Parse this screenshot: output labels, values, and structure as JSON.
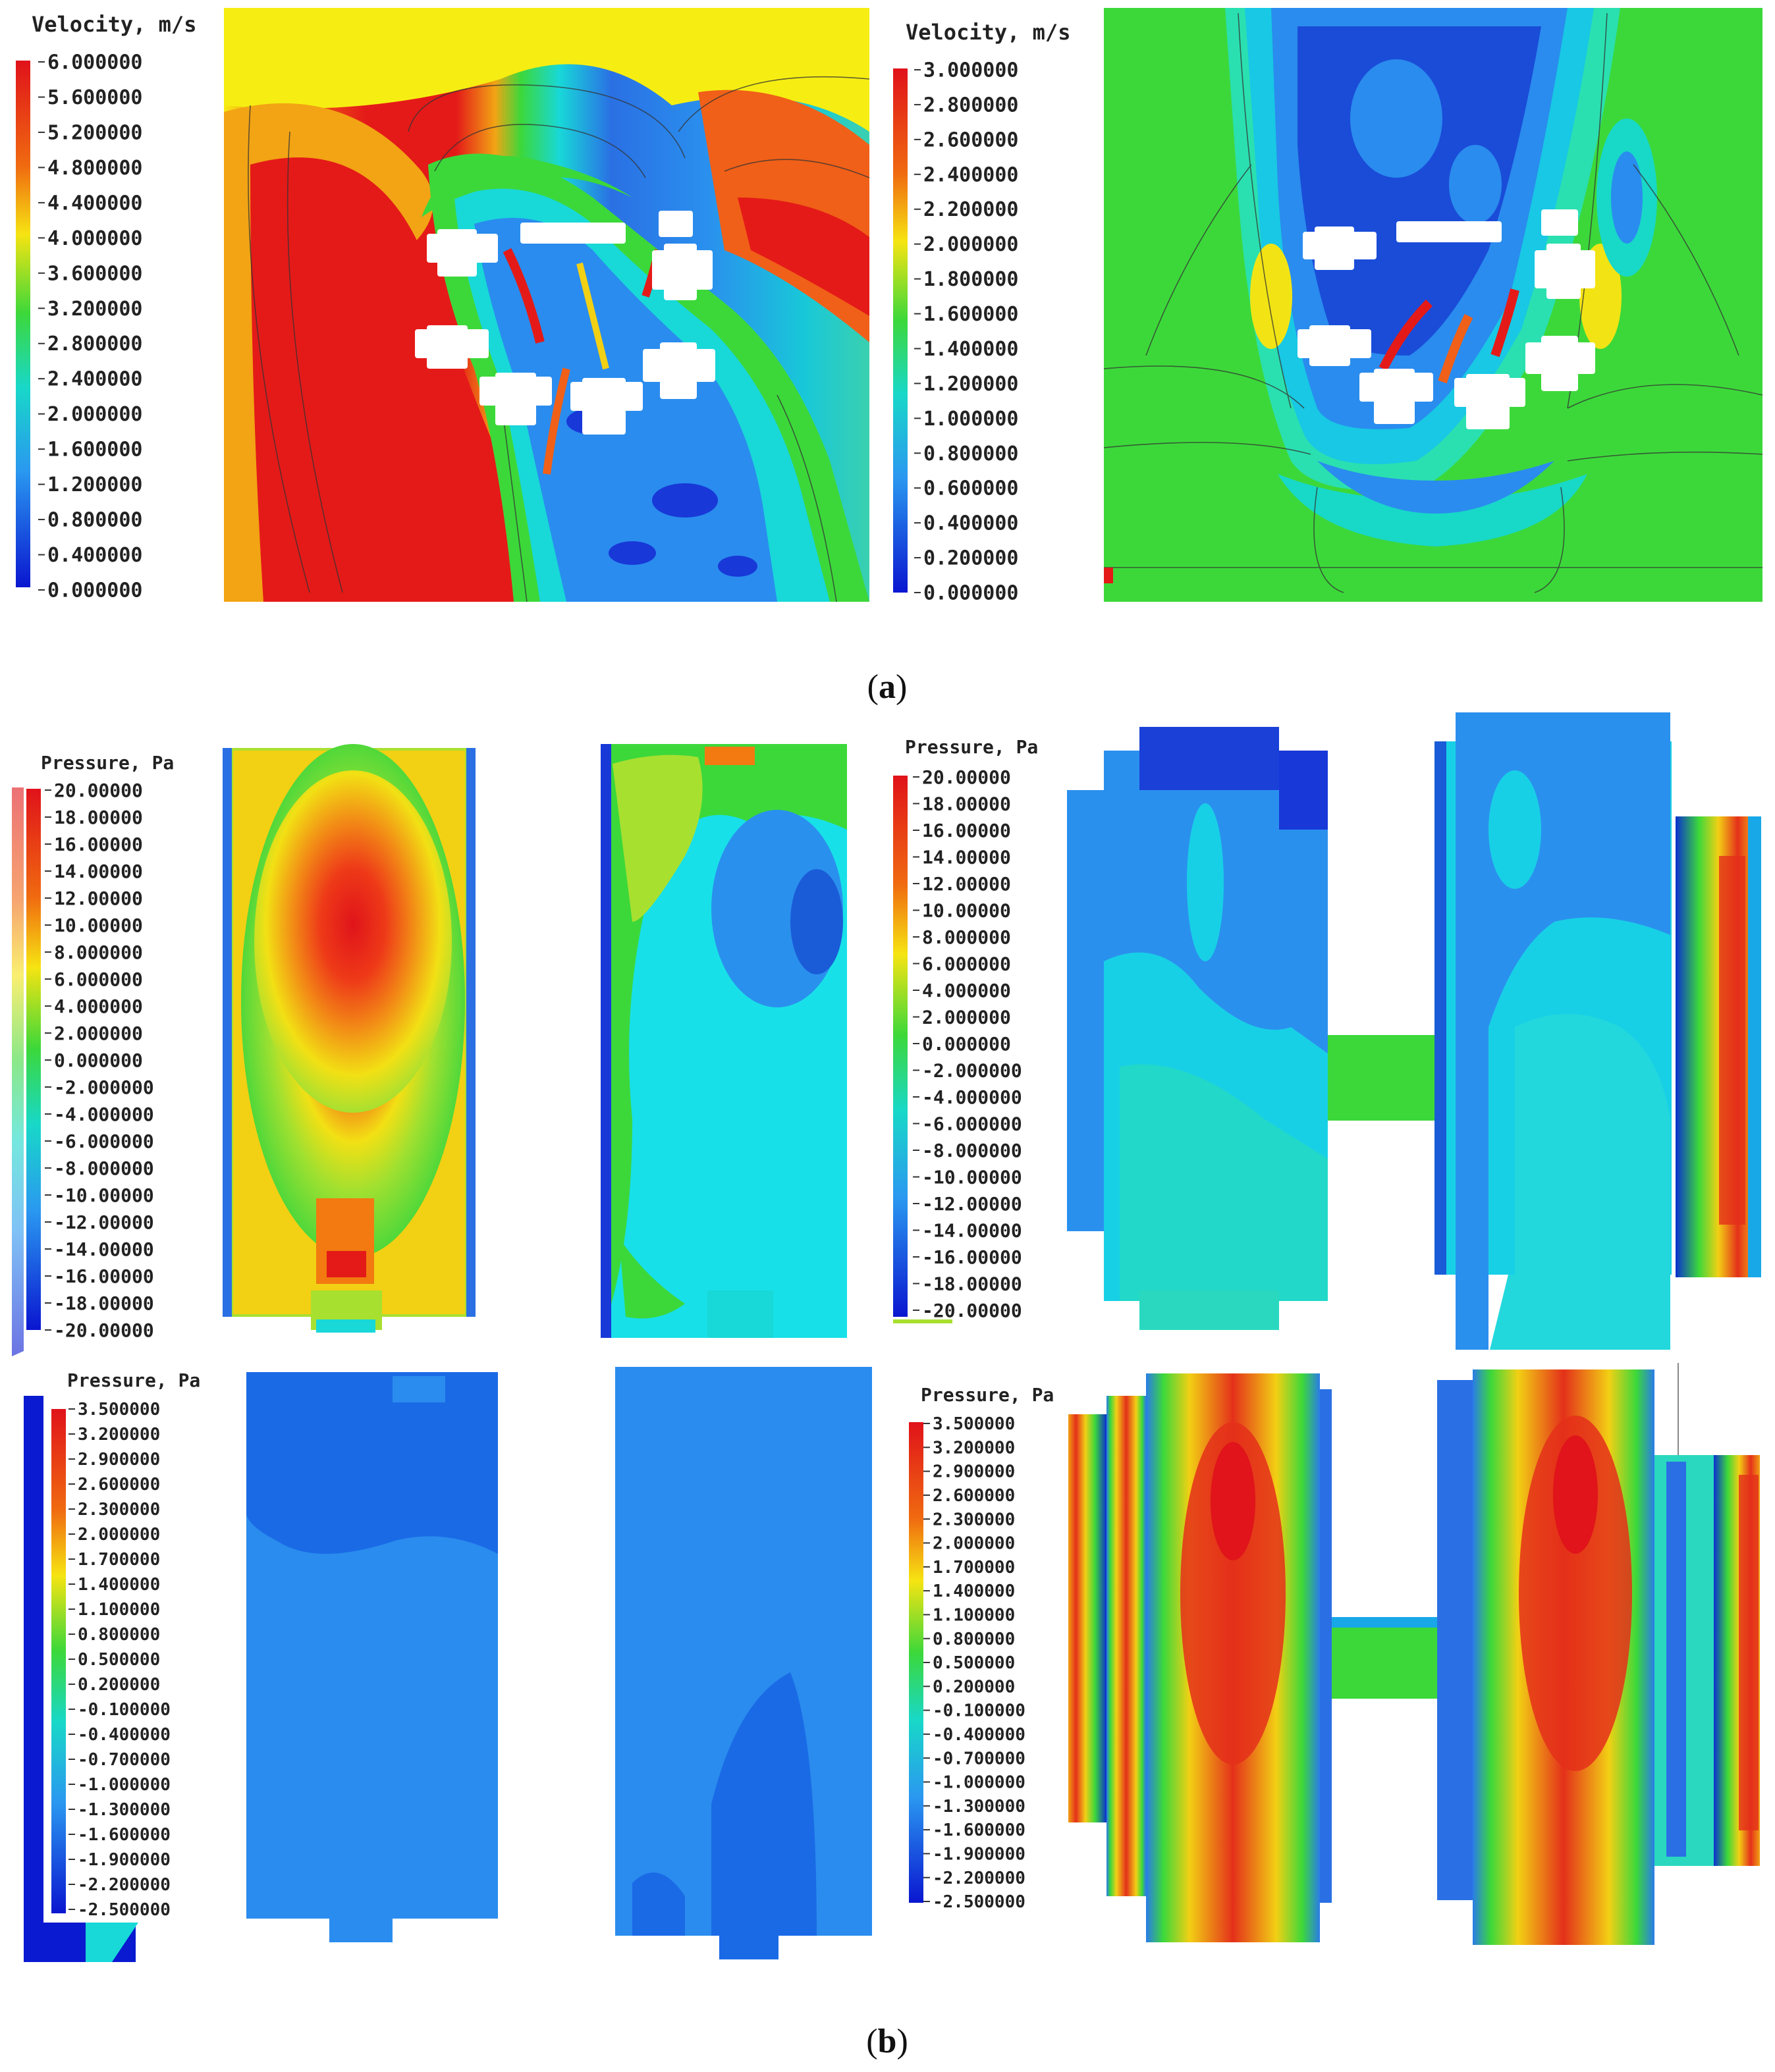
{
  "caption_a": "(a)",
  "caption_a_letter": "a",
  "caption_b": "(b)",
  "caption_b_letter": "b",
  "panel_a": {
    "left": {
      "title": "Velocity, m/s",
      "ticks": [
        "6.000000",
        "5.600000",
        "5.200000",
        "4.800000",
        "4.400000",
        "4.000000",
        "3.600000",
        "3.200000",
        "2.800000",
        "2.400000",
        "2.000000",
        "1.600000",
        "1.200000",
        "0.800000",
        "0.400000",
        "0.000000"
      ]
    },
    "right": {
      "title": "Velocity, m/s",
      "ticks": [
        "3.000000",
        "2.800000",
        "2.600000",
        "2.400000",
        "2.200000",
        "2.000000",
        "1.800000",
        "1.600000",
        "1.400000",
        "1.200000",
        "1.000000",
        "0.800000",
        "0.600000",
        "0.400000",
        "0.200000",
        "0.000000"
      ]
    }
  },
  "panel_b": {
    "top_left": {
      "title": "Pressure, Pa",
      "ticks": [
        "20.00000",
        "18.00000",
        "16.00000",
        "14.00000",
        "12.00000",
        "10.00000",
        "8.000000",
        "6.000000",
        "4.000000",
        "2.000000",
        "0.000000",
        "-2.000000",
        "-4.000000",
        "-6.000000",
        "-8.000000",
        "-10.00000",
        "-12.00000",
        "-14.00000",
        "-16.00000",
        "-18.00000",
        "-20.00000"
      ]
    },
    "top_right": {
      "title": "Pressure, Pa",
      "ticks": [
        "20.00000",
        "18.00000",
        "16.00000",
        "14.00000",
        "12.00000",
        "10.00000",
        "8.000000",
        "6.000000",
        "4.000000",
        "2.000000",
        "0.000000",
        "-2.000000",
        "-4.000000",
        "-6.000000",
        "-8.000000",
        "-10.00000",
        "-12.00000",
        "-14.00000",
        "-16.00000",
        "-18.00000",
        "-20.00000"
      ]
    },
    "bottom_left": {
      "title": "Pressure, Pa",
      "ticks": [
        "3.500000",
        "3.200000",
        "2.900000",
        "2.600000",
        "2.300000",
        "2.000000",
        "1.700000",
        "1.400000",
        "1.100000",
        "0.800000",
        "0.500000",
        "0.200000",
        "-0.100000",
        "-0.400000",
        "-0.700000",
        "-1.000000",
        "-1.300000",
        "-1.600000",
        "-1.900000",
        "-2.200000",
        "-2.500000"
      ]
    },
    "bottom_right": {
      "title": "Pressure, Pa",
      "ticks": [
        "3.500000",
        "3.200000",
        "2.900000",
        "2.600000",
        "2.300000",
        "2.000000",
        "1.700000",
        "1.400000",
        "1.100000",
        "0.800000",
        "0.500000",
        "0.200000",
        "-0.100000",
        "-0.400000",
        "-0.700000",
        "-1.000000",
        "-1.300000",
        "-1.600000",
        "-1.900000",
        "-2.200000",
        "-2.500000"
      ]
    }
  },
  "colors": {
    "red": "#e4141a",
    "orange": "#f27a10",
    "yellow": "#f6ef12",
    "green": "#3ad83a",
    "cyan": "#19e6e6",
    "lightblue": "#39b4f0",
    "blue": "#2a64e0",
    "navy": "#0a1ad0"
  }
}
